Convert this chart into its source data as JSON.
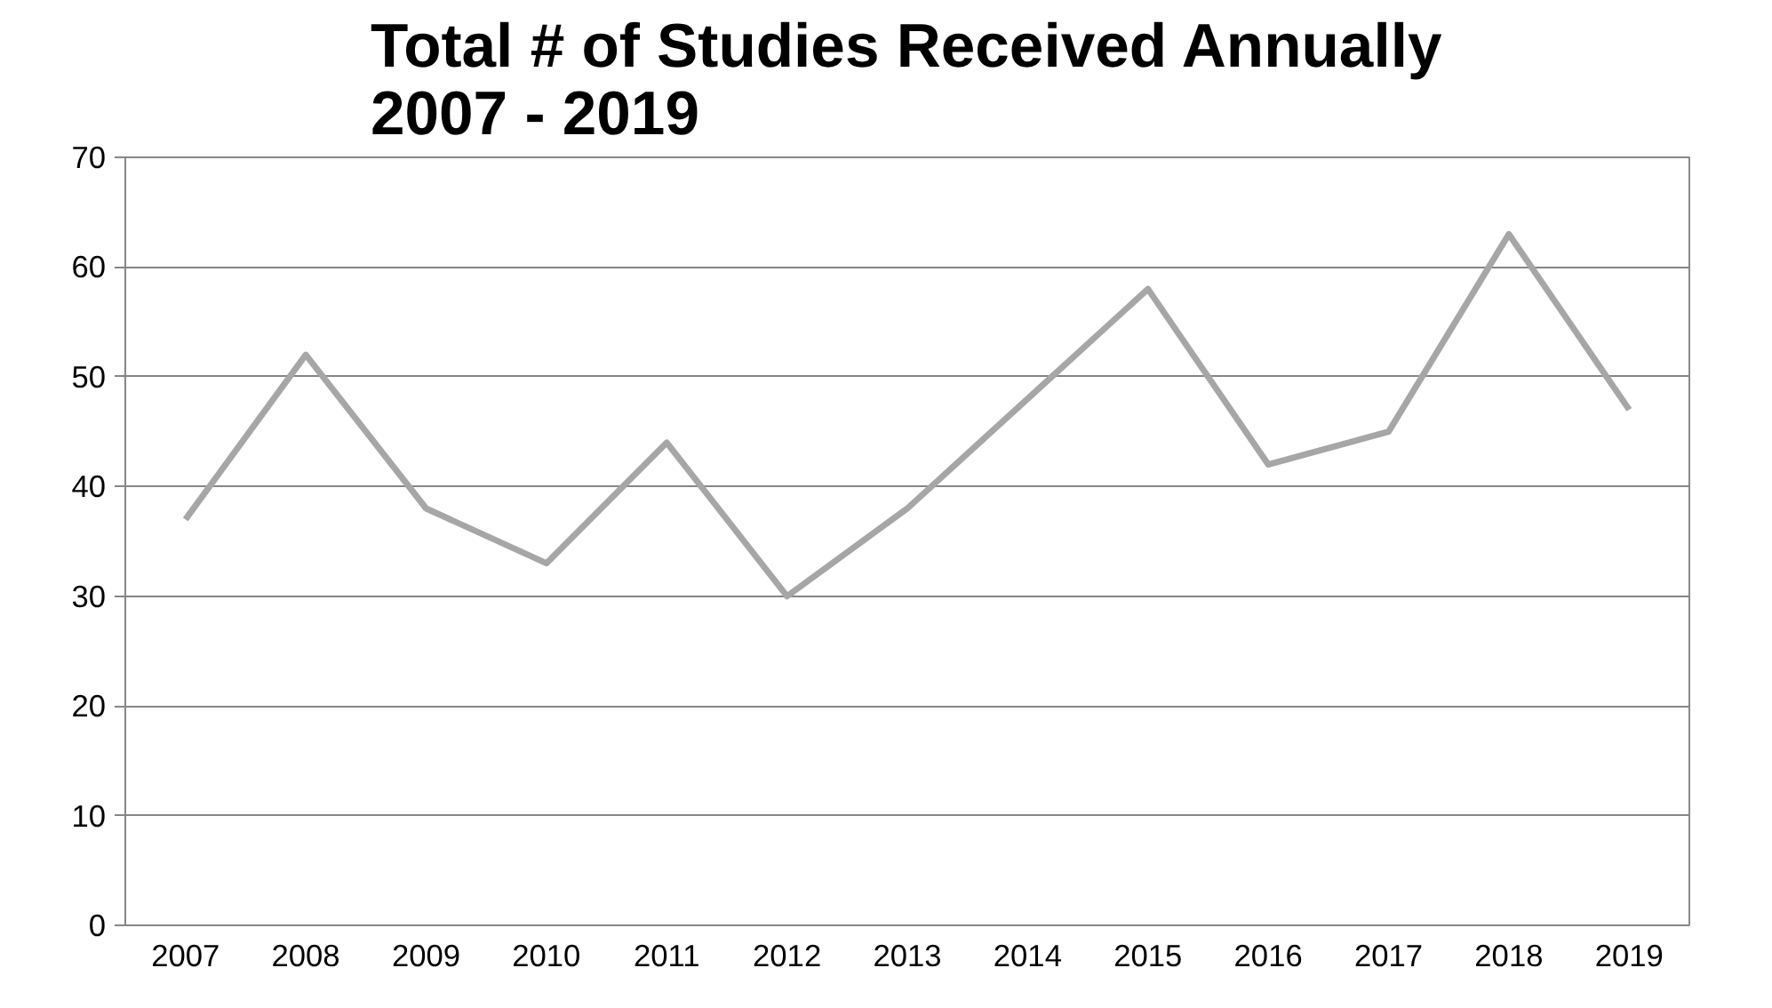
{
  "chart_data": {
    "type": "line",
    "title": "Total # of Studies Received Annually\n2007 - 2019",
    "categories": [
      "2007",
      "2008",
      "2009",
      "2010",
      "2011",
      "2012",
      "2013",
      "2014",
      "2015",
      "2016",
      "2017",
      "2018",
      "2019"
    ],
    "series": [
      {
        "color": "#a6a6a6",
        "values": [
          37,
          52,
          38,
          33,
          44,
          30,
          38,
          48,
          58,
          42,
          45,
          63,
          47
        ]
      }
    ],
    "ylim": [
      0,
      70
    ],
    "yticks": [
      0,
      10,
      20,
      30,
      40,
      50,
      60,
      70
    ],
    "grid": "y",
    "marker": "none",
    "line_style": "solid"
  }
}
